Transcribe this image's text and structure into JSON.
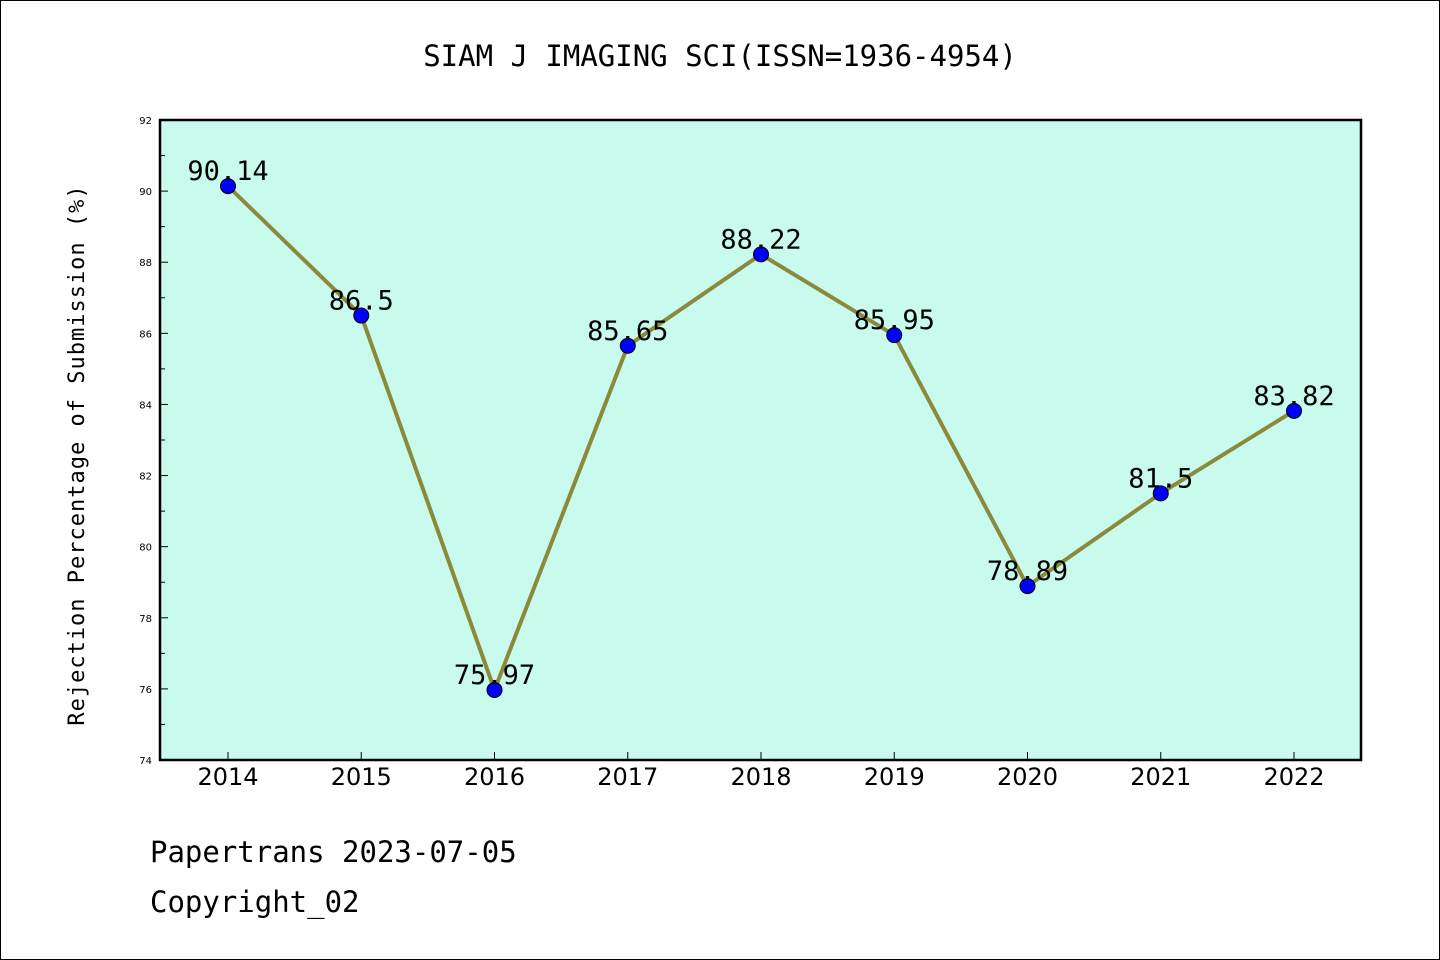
{
  "chart_data": {
    "type": "line",
    "title": "SIAM J IMAGING SCI(ISSN=1936-4954)",
    "xlabel": "",
    "ylabel": "Rejection Percentage of Submission (%)",
    "categories": [
      "2014",
      "2015",
      "2016",
      "2017",
      "2018",
      "2019",
      "2020",
      "2021",
      "2022"
    ],
    "series": [
      {
        "values": [
          90.14,
          86.5,
          75.97,
          85.65,
          88.22,
          85.95,
          78.89,
          81.5,
          83.82
        ],
        "labels": [
          "90.14",
          "86.5",
          "75.97",
          "85.65",
          "88.22",
          "85.95",
          "78.89",
          "81.5",
          "83.82"
        ],
        "line_color": "#8b8a3a",
        "marker_color": "#0000ff"
      }
    ],
    "ylim": [
      74,
      92
    ],
    "yticks": [
      "74",
      "76",
      "78",
      "80",
      "82",
      "84",
      "86",
      "88",
      "90",
      "92"
    ],
    "grid": false,
    "plot_background": "#c8fbee"
  },
  "footer": {
    "line1": "Papertrans 2023-07-05",
    "line2": "Copyright_02"
  }
}
